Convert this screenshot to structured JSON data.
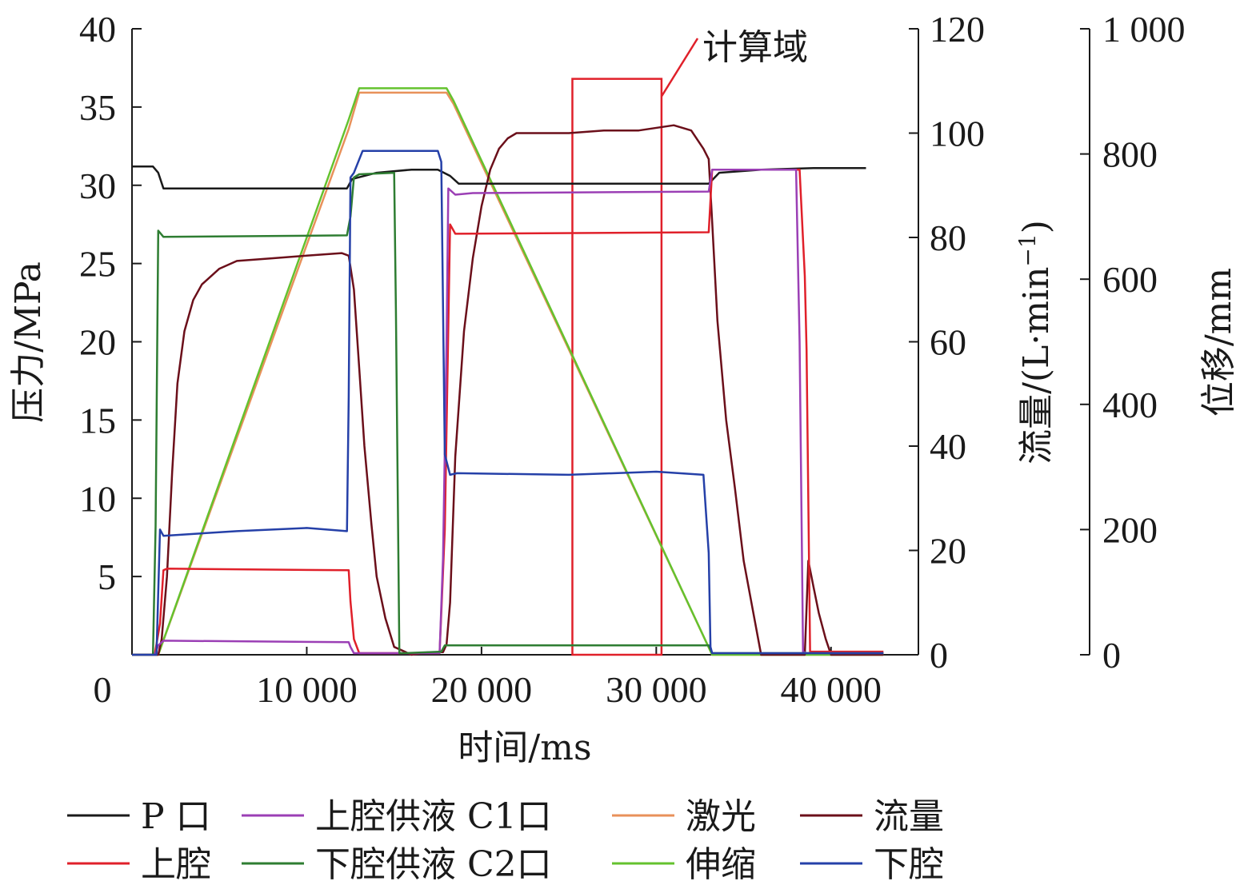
{
  "chart_data": {
    "type": "line",
    "xlabel": "时间/ms",
    "ylabel": "压力/MPa",
    "y2label_main": "流量/(L·min",
    "y2label_sup": "−1",
    "y2label_close": ")",
    "y3label": "位移/mm",
    "xlim": [
      0,
      45000
    ],
    "ylim": [
      0,
      40
    ],
    "y2lim": [
      0,
      120
    ],
    "y3lim": [
      0,
      1000
    ],
    "x_ticks": [
      "0",
      "10 000",
      "20 000",
      "30 000",
      "40 000"
    ],
    "y_ticks": [
      "5",
      "10",
      "15",
      "20",
      "25",
      "30",
      "35",
      "40"
    ],
    "y2_ticks": [
      "0",
      "20",
      "40",
      "60",
      "80",
      "100",
      "120"
    ],
    "y3_ticks": [
      "0",
      "200",
      "400",
      "600",
      "800",
      "1 000"
    ],
    "grid": false,
    "legend_position": "bottom",
    "annotation": {
      "label": "计算域",
      "x_range": [
        25200,
        30300
      ],
      "y_range": [
        0,
        36.8
      ],
      "color": "#e0202a"
    },
    "series": [
      {
        "name": "P 口",
        "axis": "pressure",
        "color": "#1a1a1a",
        "x": [
          0,
          1200,
          1500,
          1800,
          5000,
          10000,
          12300,
          12600,
          14000,
          16000,
          17500,
          18200,
          18700,
          22000,
          26000,
          30000,
          31500,
          33000,
          33600,
          36000,
          39000,
          42000
        ],
        "y": [
          31.2,
          31.2,
          30.8,
          29.8,
          29.8,
          29.8,
          29.8,
          30.4,
          30.8,
          31.0,
          31.0,
          30.6,
          30.1,
          30.1,
          30.1,
          30.1,
          30.1,
          30.1,
          30.8,
          31.0,
          31.1,
          31.1
        ]
      },
      {
        "name": "上腔",
        "axis": "pressure",
        "color": "#e0202a",
        "x": [
          0,
          1300,
          1600,
          1800,
          2000,
          12400,
          12500,
          12700,
          13000,
          17600,
          17900,
          18200,
          18500,
          33000,
          33200,
          38200,
          38500,
          38600,
          38800,
          43000
        ],
        "y": [
          0,
          0,
          2,
          5.4,
          5.5,
          5.4,
          3.4,
          1,
          0.1,
          0.1,
          8,
          27.5,
          26.9,
          27.0,
          31.0,
          31.0,
          24.2,
          19.5,
          0.2,
          0.2
        ]
      },
      {
        "name": "上腔供液 C1口",
        "axis": "pressure",
        "color": "#9b3fb5",
        "x": [
          0,
          1300,
          1500,
          1800,
          12400,
          12500,
          12700,
          17600,
          17800,
          18000,
          18100,
          18500,
          19500,
          33000,
          33200,
          38000,
          38200,
          38400,
          38600,
          43000
        ],
        "y": [
          0,
          0,
          0.6,
          0.9,
          0.8,
          0.5,
          0.1,
          0.1,
          6.2,
          20,
          29.8,
          29.4,
          29.5,
          29.6,
          31.0,
          31.0,
          20,
          0.2,
          0.1,
          0.1
        ]
      },
      {
        "name": "下腔供液 C2口",
        "axis": "pressure",
        "color": "#2e7d32",
        "x": [
          0,
          1200,
          1350,
          1500,
          1800,
          12300,
          12500,
          12700,
          13000,
          15000,
          15100,
          15300,
          15500,
          17700,
          17900,
          18500,
          33000,
          33200,
          43000
        ],
        "y": [
          0,
          0,
          8.2,
          27.1,
          26.7,
          26.8,
          28,
          30.5,
          30.7,
          30.8,
          22,
          0.1,
          0.1,
          0.2,
          0.6,
          0.6,
          0.6,
          0.1,
          0.1
        ]
      },
      {
        "name": "下腔",
        "axis": "pressure",
        "color": "#2540a8",
        "x": [
          0,
          1400,
          1600,
          1800,
          6000,
          10000,
          12300,
          12400,
          12500,
          12700,
          13200,
          13800,
          17500,
          17700,
          17900,
          18200,
          18600,
          25000,
          30000,
          32700,
          33000,
          33100,
          33200,
          43000
        ],
        "y": [
          0,
          0,
          8.0,
          7.6,
          7.9,
          8.1,
          7.9,
          16.5,
          30.5,
          30.8,
          32.2,
          32.2,
          32.2,
          31.5,
          12.8,
          11.5,
          11.6,
          11.5,
          11.7,
          11.5,
          6.5,
          0.5,
          0.1,
          0.1
        ]
      },
      {
        "name": "激光",
        "axis": "displacement",
        "color": "#e8915a",
        "x": [
          0,
          1500,
          12400,
          13000,
          18000,
          18400,
          33200,
          43000
        ],
        "y": [
          0,
          0,
          840,
          898,
          898,
          880,
          0,
          0
        ]
      },
      {
        "name": "伸缩",
        "axis": "displacement",
        "color": "#64c22e",
        "x": [
          0,
          1500,
          12400,
          13000,
          18000,
          18400,
          33200,
          43000
        ],
        "y": [
          0,
          0,
          855,
          905,
          905,
          885,
          0,
          0
        ]
      },
      {
        "name": "流量",
        "axis": "flow",
        "color": "#6b0f1a",
        "x": [
          0,
          1500,
          1700,
          2000,
          2300,
          2600,
          3000,
          3500,
          4000,
          5000,
          6000,
          8000,
          10000,
          12000,
          12400,
          12700,
          13000,
          13300,
          13700,
          14000,
          14500,
          15000,
          16000,
          17000,
          17800,
          18000,
          18200,
          18500,
          19000,
          19500,
          20000,
          20500,
          21000,
          21500,
          22000,
          23000,
          25000,
          27000,
          29000,
          31000,
          32000,
          32700,
          33000,
          33200,
          33500,
          34000,
          34500,
          35000,
          35500,
          36000,
          38500,
          38700,
          39000,
          39300,
          39700,
          40000,
          43000
        ],
        "y": [
          0,
          0,
          3,
          15,
          35,
          52,
          62,
          68,
          71,
          74,
          75.5,
          76,
          76.5,
          77,
          76.5,
          70,
          55,
          40,
          25,
          15,
          7,
          1.5,
          0,
          0.5,
          0.5,
          2,
          10,
          38,
          62,
          76,
          86,
          93,
          97,
          99,
          100,
          100,
          100,
          100.5,
          100.5,
          101.5,
          100.5,
          97,
          95,
          83,
          64,
          45,
          32,
          18,
          9,
          0,
          0,
          18,
          13,
          8,
          3,
          0,
          0
        ]
      }
    ]
  },
  "legend": {
    "items": [
      {
        "label": "P 口",
        "color": "#1a1a1a"
      },
      {
        "label": "上腔供液 C1口",
        "color": "#9b3fb5"
      },
      {
        "label": "激光",
        "color": "#e8915a"
      },
      {
        "label": "流量",
        "color": "#6b0f1a"
      },
      {
        "label": "上腔",
        "color": "#e0202a"
      },
      {
        "label": "下腔供液 C2口",
        "color": "#2e7d32"
      },
      {
        "label": "伸缩",
        "color": "#64c22e"
      },
      {
        "label": "下腔",
        "color": "#2540a8"
      }
    ]
  }
}
